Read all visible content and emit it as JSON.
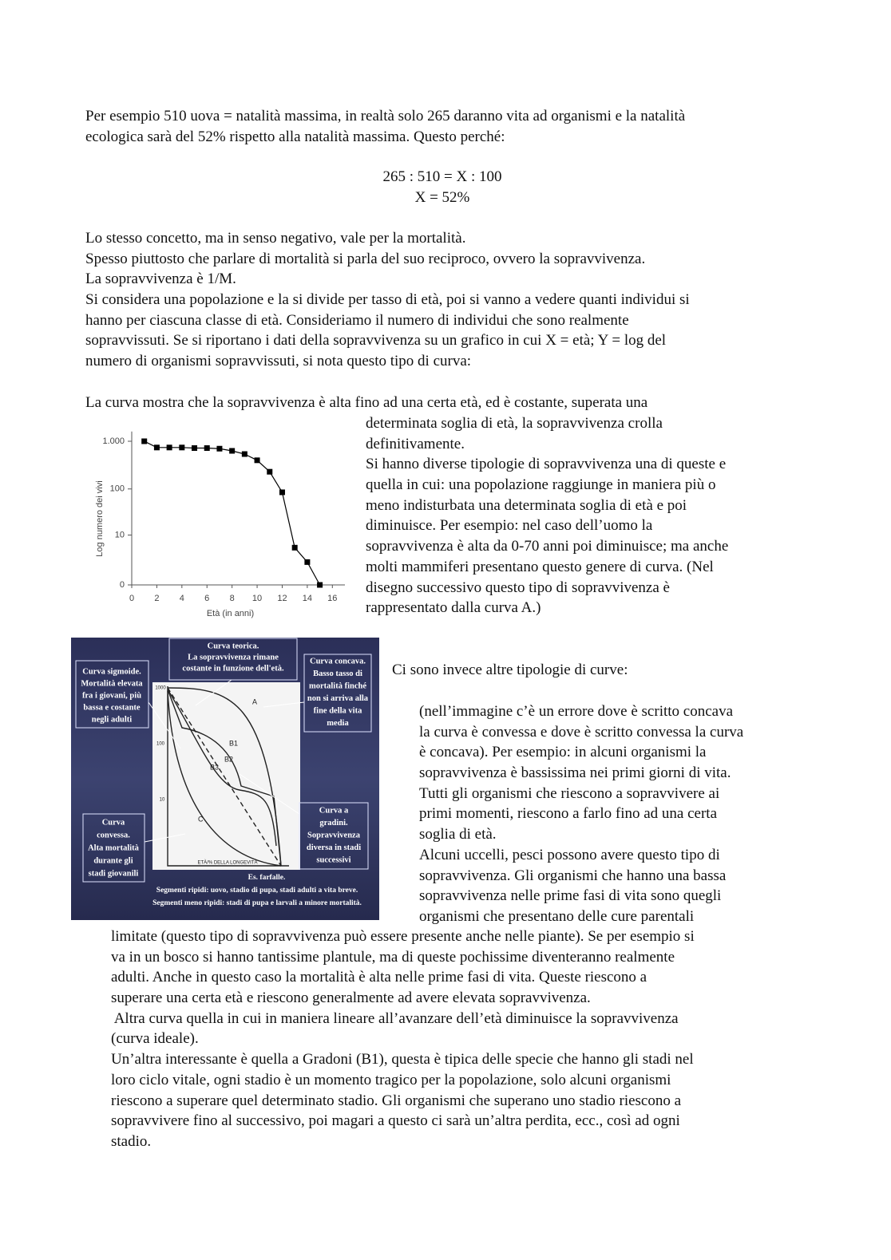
{
  "text": {
    "blocks": [
      {
        "lines": [
          "Per esempio 510 uova = natalità massima, in realtà solo 265 daranno vita ad organismi e la natalità",
          "ecologica sarà del 52% rispetto alla natalità massima. Questo perché:"
        ]
      },
      {
        "lines": [
          "265 : 510 = X : 100",
          "X = 52%"
        ]
      },
      {
        "lines": [
          "Lo stesso concetto, ma in senso negativo, vale per la mortalità.",
          "Spesso piuttosto che parlare di mortalità si parla del suo reciproco, ovvero la sopravvivenza.",
          "La sopravvivenza è 1/M.",
          "Si considera una popolazione e la si divide per tasso di età, poi si vanno a vedere quanti individui si",
          "hanno per ciascuna classe di età. Consideriamo il numero di individui che sono realmente",
          "sopravvissuti. Se si riportano i dati della sopravvivenza su un grafico in cui X = età; Y = log del",
          "numero di organismi sopravvissuti, si nota questo tipo di curva:"
        ]
      },
      {
        "lines": [
          "La curva mostra che la sopravvivenza è alta fino ad una certa età, ed è costante, superata una"
        ]
      },
      {
        "lines": [
          "determinata soglia di età, la sopravvivenza crolla",
          "definitivamente.",
          "Si hanno diverse tipologie di sopravvivenza una di queste e",
          "quella in cui: una popolazione raggiunge in maniera più o",
          "meno indisturbata una determinata soglia di età e poi",
          "diminuisce. Per esempio: nel caso dell’uomo la",
          "sopravvivenza è alta da 0-70 anni poi diminuisce; ma anche",
          "molti mammiferi presentano questo genere di curva. (Nel",
          "disegno successivo questo tipo di sopravvivenza è",
          "rappresentato dalla curva A.)"
        ]
      },
      {
        "lines": [
          "Ci sono invece altre tipologie di curve:"
        ]
      },
      {
        "lines": [
          "(nell’immagine c’è un errore dove è scritto concava",
          "la curva è convessa e dove è scritto convessa la curva",
          "è concava). Per esempio: in alcuni organismi la",
          "sopravvivenza è bassissima nei primi giorni di vita.",
          "Tutti gli organismi che riescono a sopravvivere ai",
          "primi momenti, riescono a farlo fino ad una certa",
          "soglia di età.",
          "Alcuni uccelli, pesci possono avere questo tipo di",
          "sopravvivenza. Gli organismi che hanno una bassa",
          "sopravvivenza nelle prime fasi di vita sono quegli",
          "organismi che presentano delle cure parentali"
        ]
      },
      {
        "lines": [
          "limitate (questo tipo di sopravvivenza può essere presente anche nelle piante). Se per esempio si",
          "va in un bosco si hanno tantissime plantule, ma di queste pochissime diventeranno realmente",
          "adulti. Anche in questo caso la mortalità è alta nelle prime fasi di vita. Queste riescono a",
          "superare una certa età e riescono generalmente ad avere elevata sopravvivenza.",
          " Altra curva quella in cui in maniera lineare all’avanzare dell’età diminuisce la sopravvivenza",
          "(curva ideale).",
          "Un’altra interessante è quella a Gradoni (B1), questa è tipica delle specie che hanno gli stadi nel",
          "loro ciclo vitale, ogni stadio è un momento tragico per la popolazione, solo alcuni organismi",
          "riescono a superare quel determinato stadio. Gli organismi che superano uno stadio riescono a",
          "sopravvivere fino al successivo, poi magari a questo ci sarà un’altra perdita, ecc., così ad ogni",
          "stadio."
        ]
      }
    ]
  },
  "chart_data": {
    "type": "line",
    "x": [
      1,
      2,
      3,
      4,
      5,
      6,
      7,
      8,
      9,
      10,
      11,
      12,
      13,
      14,
      15
    ],
    "series": [
      {
        "color": "#000000",
        "values": [
          1000,
          740,
          740,
          740,
          720,
          720,
          700,
          630,
          540,
          400,
          230,
          85,
          5,
          2,
          0
        ]
      }
    ],
    "marker": "square",
    "log_scale": true,
    "xlabel": "Età (in anni)",
    "ylabel": "Log numero dei vivi",
    "xlim": [
      0,
      17
    ],
    "xticks": [
      0,
      2,
      4,
      6,
      8,
      10,
      12,
      14,
      16
    ],
    "ylim": [
      0,
      1600
    ],
    "yticks": [
      0,
      10,
      100,
      {
        "value": 1000,
        "label": "1.000"
      }
    ]
  },
  "figure": {
    "boxes": [
      {
        "lines": [
          "Curva teorica.",
          "La sopravvivenza rimane",
          "costante in funzione dell'età."
        ]
      },
      {
        "lines": [
          "Curva sigmoide.",
          "Mortalità elevata",
          "fra i giovani, più",
          "bassa e costante",
          "negli adulti"
        ]
      },
      {
        "lines": [
          "Curva concava.",
          "Basso tasso di",
          "mortalità finché",
          "non si arriva alla",
          "fine della vita",
          "media"
        ]
      },
      {
        "lines": [
          "Curva",
          "convessa.",
          "Alta mortalità",
          "durante gli",
          "stadi giovanili"
        ]
      },
      {
        "lines": [
          "Curva a",
          "gradini.",
          "Sopravvivenza",
          "diversa in stadi",
          "successivi"
        ]
      }
    ],
    "caption": [
      "Es. farfalle.",
      "Segmenti ripidi: uovo, stadio di pupa, stadi adulti a vita breve.",
      "Segmenti meno ripidi: stadi di pupa e larvali a minore mortalità."
    ],
    "curve_labels": [
      "A",
      "B1",
      "B2",
      "B3",
      "C"
    ],
    "axis_ticks": [
      "1000",
      "100",
      "10"
    ],
    "xlabel": "ETÀ/% DELLA LONGEVITÀ"
  }
}
